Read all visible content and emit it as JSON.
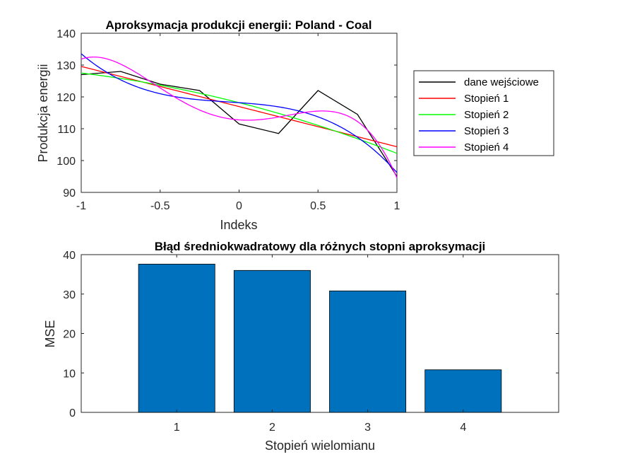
{
  "chart_data": [
    {
      "type": "line",
      "title": "Aproksymacja produkcji energii: Poland - Coal",
      "xlabel": "Indeks",
      "ylabel": "Produkcja energii",
      "xlim": [
        -1,
        1
      ],
      "ylim": [
        90,
        140
      ],
      "xticks": [
        -1,
        -0.5,
        0,
        0.5,
        1
      ],
      "xtick_labels": [
        "-1",
        "-0.5",
        "0",
        "0.5",
        "1"
      ],
      "yticks": [
        90,
        100,
        110,
        120,
        130,
        140
      ],
      "ytick_labels": [
        "90",
        "100",
        "110",
        "120",
        "130",
        "140"
      ],
      "grid": false,
      "legend_position": "right",
      "series": [
        {
          "name": "dane wejściowe",
          "color": "#000000",
          "mode": "data",
          "x": [
            -1,
            -0.75,
            -0.5,
            -0.25,
            0,
            0.25,
            0.5,
            0.75,
            1
          ],
          "y": [
            127,
            128,
            124,
            122,
            111.5,
            108.5,
            122,
            114.5,
            95
          ]
        },
        {
          "name": "Stopień 1",
          "color": "#ff0000",
          "mode": "poly",
          "coeffs": [
            116.96,
            -12.62
          ]
        },
        {
          "name": "Stopień 2",
          "color": "#00ff00",
          "mode": "poly",
          "coeffs": [
            118.19,
            -12.62,
            -3.3
          ]
        },
        {
          "name": "Stopień 3",
          "color": "#0000ff",
          "mode": "poly",
          "coeffs": [
            118.19,
            -3.48,
            -3.3,
            -15.18
          ]
        },
        {
          "name": "Stopień 4",
          "color": "#ff00ff",
          "mode": "poly",
          "coeffs": [
            112.78,
            -3.48,
            34.0,
            -15.18,
            -33.57
          ]
        }
      ]
    },
    {
      "type": "bar",
      "title": "Błąd średniokwadratowy dla różnych stopni aproksymacji",
      "xlabel": "Stopień wielomianu",
      "ylabel": "MSE",
      "categories": [
        "1",
        "2",
        "3",
        "4"
      ],
      "values": [
        37.6,
        36.0,
        30.8,
        10.8
      ],
      "xlim": [
        0,
        5
      ],
      "ylim": [
        0,
        40
      ],
      "yticks": [
        0,
        10,
        20,
        30,
        40
      ],
      "ytick_labels": [
        "0",
        "10",
        "20",
        "30",
        "40"
      ],
      "bar_color": "#0072bd",
      "grid": false
    }
  ]
}
